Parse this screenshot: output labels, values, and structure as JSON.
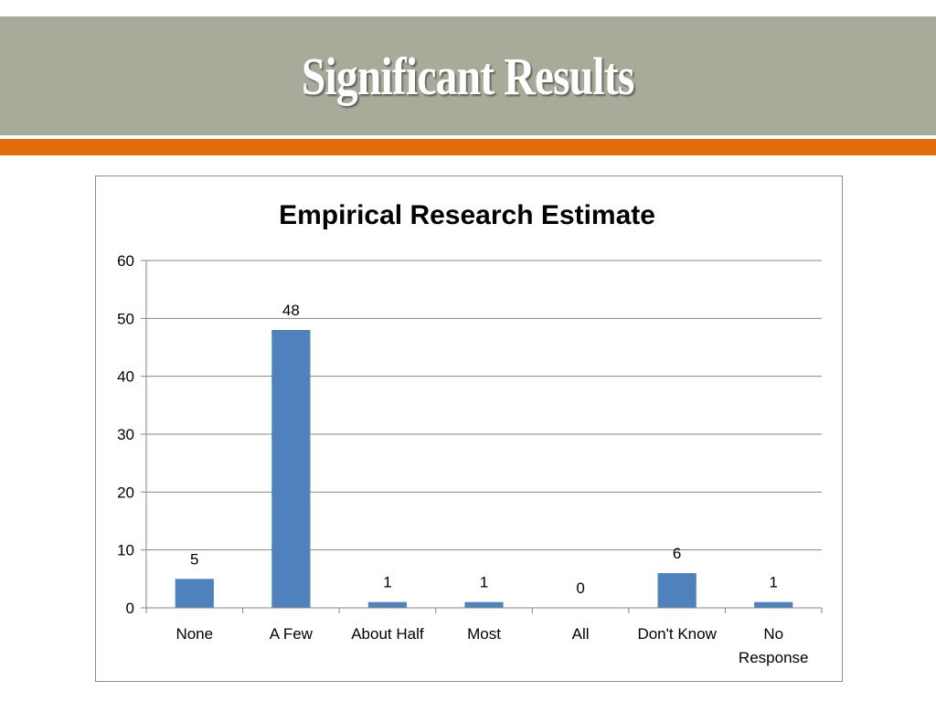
{
  "slide": {
    "title": "Significant Results"
  },
  "colors": {
    "title_bar": "#a6ab9a",
    "accent_line": "#e36c0a",
    "bar": "#4f81bd",
    "gridline": "#868686"
  },
  "chart_data": {
    "type": "bar",
    "title": "Empirical Research Estimate",
    "categories": [
      "None",
      "A Few",
      "About Half",
      "Most",
      "All",
      "Don't Know",
      "No Response"
    ],
    "category_lines": [
      [
        "None"
      ],
      [
        "A Few"
      ],
      [
        "About Half"
      ],
      [
        "Most"
      ],
      [
        "All"
      ],
      [
        "Don't Know"
      ],
      [
        "No",
        "Response"
      ]
    ],
    "values": [
      5,
      48,
      1,
      1,
      0,
      6,
      1
    ],
    "ylim": [
      0,
      60
    ],
    "yticks": [
      0,
      10,
      20,
      30,
      40,
      50,
      60
    ],
    "xlabel": "",
    "ylabel": "",
    "grid": true,
    "legend": "none"
  }
}
